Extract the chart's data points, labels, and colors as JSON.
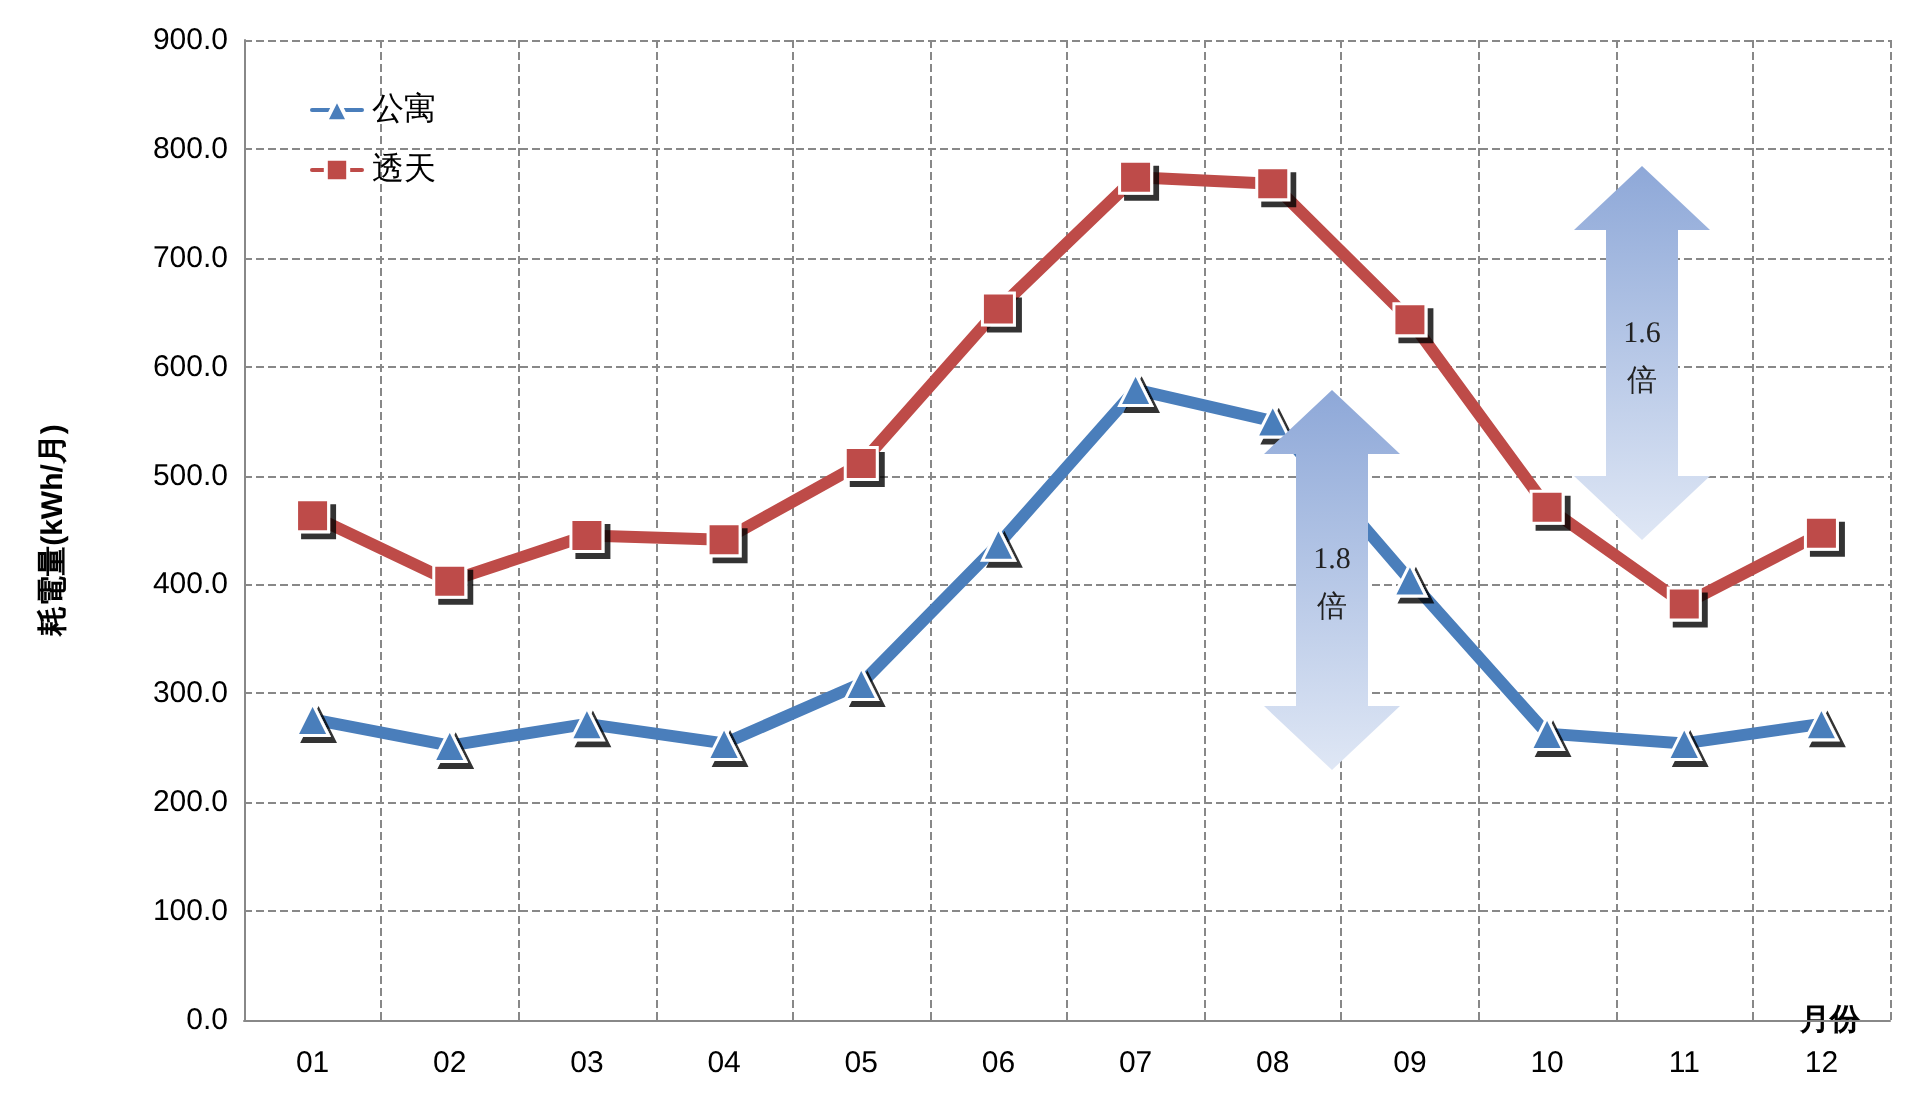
{
  "chart_data": {
    "type": "line",
    "ylabel": "耗電量(kWh/月)",
    "xlabel": "月份",
    "categories": [
      "01",
      "02",
      "03",
      "04",
      "05",
      "06",
      "07",
      "08",
      "09",
      "10",
      "11",
      "12"
    ],
    "series": [
      {
        "name": "公寓",
        "color": "#4a7ebb",
        "marker": "triangle",
        "values": [
          276,
          252,
          272,
          254,
          309,
          437,
          579,
          550,
          404,
          263,
          254,
          272
        ]
      },
      {
        "name": "透天",
        "color": "#be4b48",
        "marker": "square",
        "values": [
          463,
          403,
          445,
          441,
          511,
          653,
          774,
          768,
          643,
          471,
          382,
          447
        ]
      }
    ],
    "ylim": [
      0,
      900
    ],
    "yticks": [
      {
        "value": 0,
        "label": "0.0"
      },
      {
        "value": 100,
        "label": "100.0"
      },
      {
        "value": 200,
        "label": "200.0"
      },
      {
        "value": 300,
        "label": "300.0"
      },
      {
        "value": 400,
        "label": "400.0"
      },
      {
        "value": 500,
        "label": "500.0"
      },
      {
        "value": 600,
        "label": "600.0"
      },
      {
        "value": 700,
        "label": "700.0"
      },
      {
        "value": 800,
        "label": "800.0"
      },
      {
        "value": 900,
        "label": "900.0"
      }
    ],
    "grid": true,
    "legend": "top left",
    "line_style": "solid",
    "annotations": [
      "1.8\n倍",
      "1.6\n倍"
    ]
  }
}
